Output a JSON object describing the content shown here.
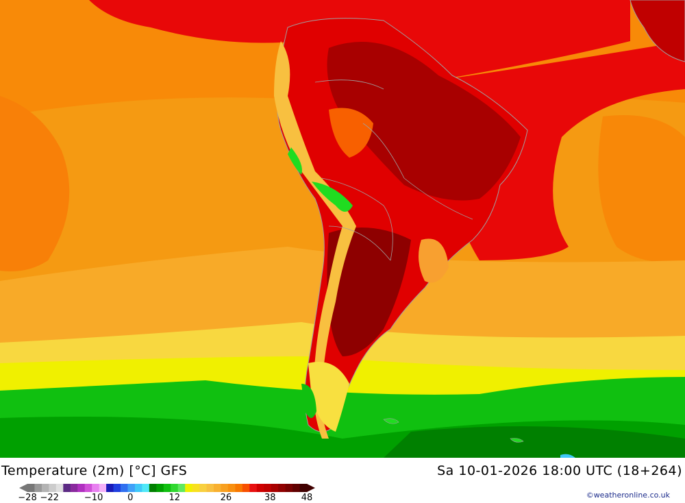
{
  "footer": {
    "title": "Temperature (2m) [°C] GFS",
    "valid_time": "Sa 10-01-2026 18:00 UTC (18+264)",
    "credit": "©weatheronline.co.uk"
  },
  "legend": {
    "tick_labels": [
      "-28",
      "-22",
      "-10",
      "0",
      "12",
      "26",
      "38",
      "48"
    ],
    "tick_values": [
      -28,
      -22,
      -10,
      0,
      12,
      26,
      38,
      48
    ],
    "min": -28,
    "max": 48,
    "colors": [
      "#777777",
      "#999999",
      "#b3b3b3",
      "#cccccc",
      "#e0e0e0",
      "#5c2a84",
      "#8a2a9e",
      "#b030c0",
      "#d050d8",
      "#e880f0",
      "#f4b0f8",
      "#1a1ab8",
      "#2040e0",
      "#3070f0",
      "#40a0f8",
      "#40c8f8",
      "#50e8f8",
      "#008000",
      "#00a000",
      "#10c010",
      "#30d830",
      "#60e860",
      "#f0f000",
      "#f8e020",
      "#f8d040",
      "#f8c040",
      "#f8b030",
      "#f8a020",
      "#f89010",
      "#f87800",
      "#f85000",
      "#e81010",
      "#d00000",
      "#c00000",
      "#a80000",
      "#900000",
      "#780000",
      "#600000",
      "#400000"
    ],
    "colors_note": ""
  },
  "map_colors": {
    "ocean_warm": "#f59a12",
    "ocean_orange": "#f88a08",
    "ocean_pale": "#f8b030",
    "hot_red": "#e60000",
    "dark_red": "#b80000",
    "very_dark_red": "#8e0000",
    "yellow": "#f0f000",
    "light_yellow": "#f8e040",
    "green": "#10c010",
    "bright_green": "#20dc20",
    "dark_green": "#008800",
    "border_gray": "#a0a0a0"
  }
}
